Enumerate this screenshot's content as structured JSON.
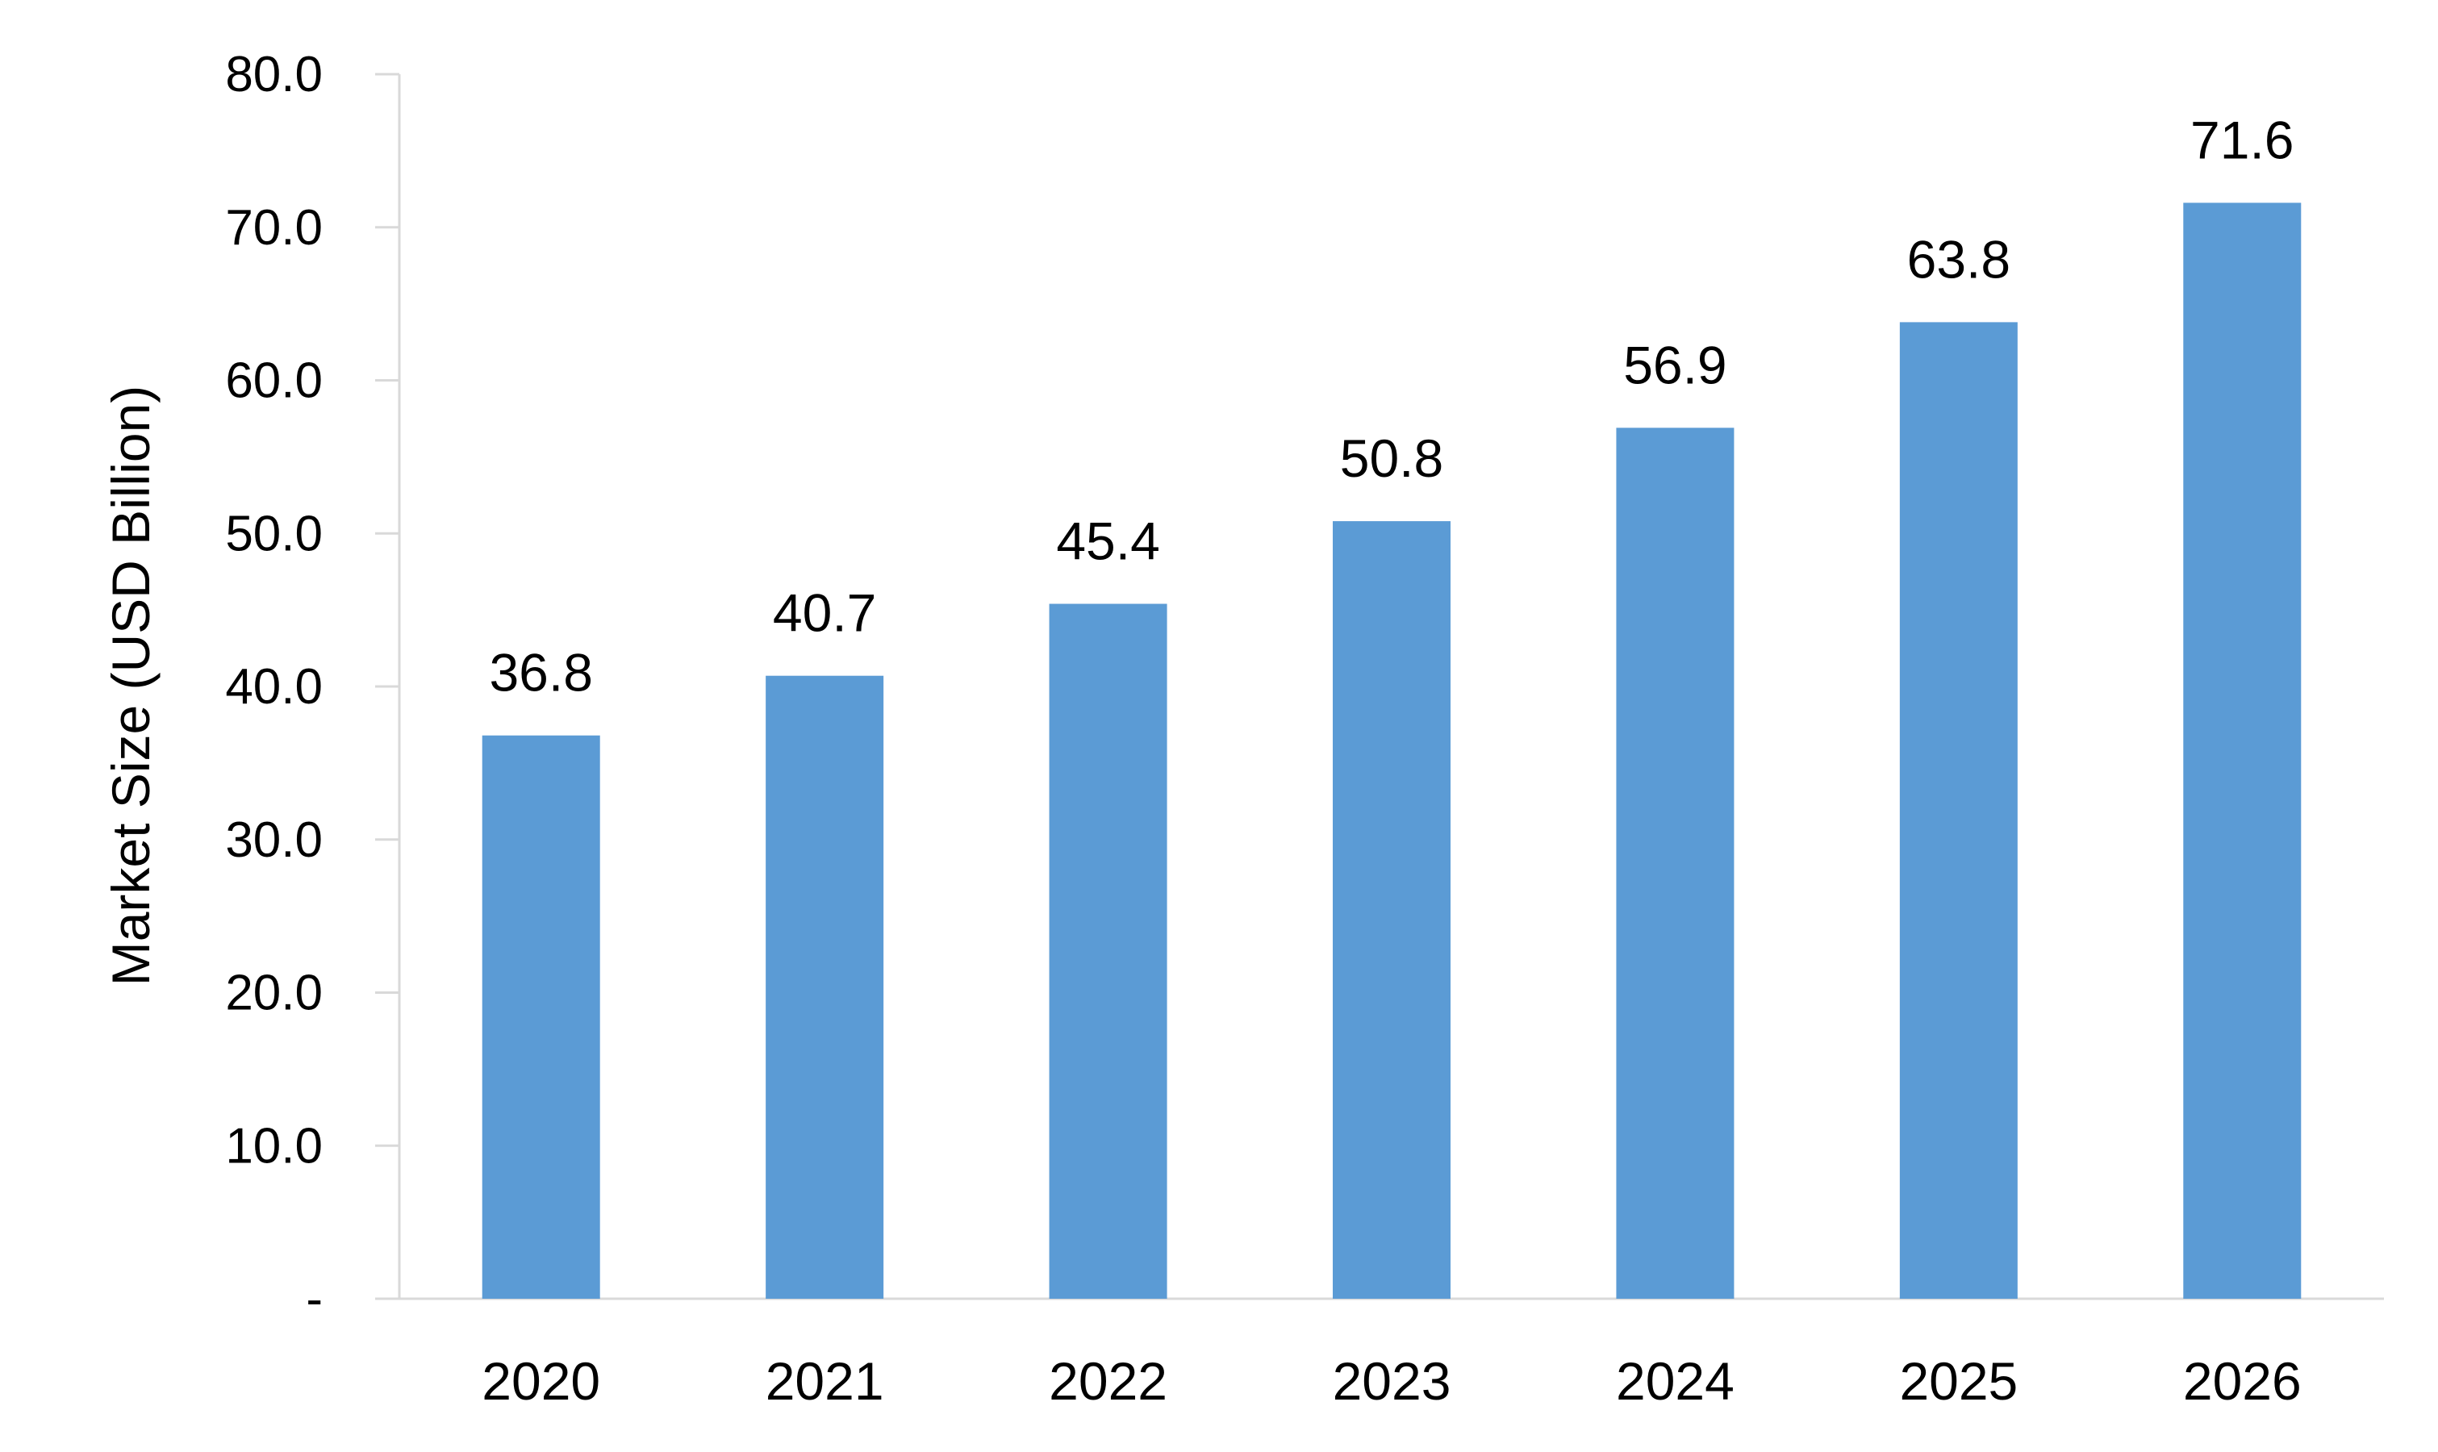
{
  "chart_data": {
    "type": "bar",
    "title": "",
    "xlabel": "",
    "ylabel": "Market Size (USD Billion)",
    "categories": [
      "2020",
      "2021",
      "2022",
      "2023",
      "2024",
      "2025",
      "2026"
    ],
    "values": [
      36.8,
      40.7,
      45.4,
      50.8,
      56.9,
      63.8,
      71.6
    ],
    "data_labels": [
      "36.8",
      "40.7",
      "45.4",
      "50.8",
      "56.9",
      "63.8",
      "71.6"
    ],
    "ylim": [
      0,
      80
    ],
    "y_ticks": [
      0,
      10,
      20,
      30,
      40,
      50,
      60,
      70,
      80
    ],
    "y_tick_labels": [
      "-",
      "10.0",
      "20.0",
      "30.0",
      "40.0",
      "50.0",
      "60.0",
      "70.0",
      "80.0"
    ],
    "grid": false,
    "legend": "none",
    "bar_color": "#5b9bd5",
    "axis_color": "#d9d9d9"
  }
}
